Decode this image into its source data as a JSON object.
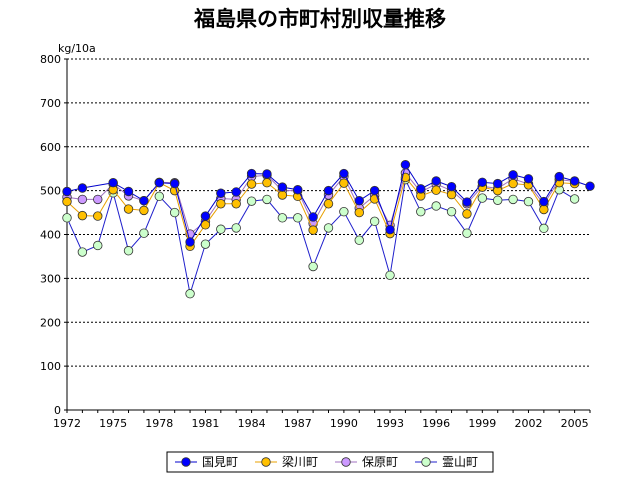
{
  "chart_data": {
    "type": "line",
    "title": "福島県の市町村別収量推移",
    "unit_label": "kg/10a",
    "xlabel": "",
    "ylabel": "kg/10a",
    "ylim": [
      0,
      800
    ],
    "yticks": [
      0,
      100,
      200,
      300,
      400,
      500,
      600,
      700,
      800
    ],
    "xlim": [
      1972,
      2006
    ],
    "xticks": [
      1972,
      1975,
      1978,
      1981,
      1984,
      1987,
      1990,
      1993,
      1996,
      1999,
      2002,
      2005
    ],
    "grid": "horizontal-dashed",
    "legend_position": "bottom",
    "x": [
      1972,
      1973,
      1974,
      1975,
      1976,
      1977,
      1978,
      1979,
      1980,
      1981,
      1982,
      1983,
      1984,
      1985,
      1986,
      1987,
      1988,
      1989,
      1990,
      1991,
      1992,
      1993,
      1994,
      1995,
      1996,
      1997,
      1998,
      1999,
      2000,
      2001,
      2002,
      2003,
      2004,
      2005,
      2006
    ],
    "series": [
      {
        "name": "国見町",
        "line_color": "#0000cc",
        "marker_fill": "#0000ff",
        "values": [
          498,
          506,
          null,
          518,
          498,
          477,
          518,
          516,
          383,
          442,
          494,
          497,
          539,
          538,
          508,
          502,
          440,
          500,
          539,
          477,
          500,
          411,
          559,
          504,
          522,
          509,
          474,
          519,
          516,
          536,
          527,
          475,
          532,
          522,
          510
        ]
      },
      {
        "name": "梁川町",
        "line_color": "#e8a000",
        "marker_fill": "#ffc000",
        "values": [
          475,
          443,
          442,
          502,
          458,
          455,
          518,
          500,
          373,
          422,
          470,
          470,
          515,
          518,
          490,
          487,
          410,
          470,
          517,
          450,
          481,
          402,
          530,
          488,
          501,
          491,
          447,
          508,
          500,
          516,
          513,
          457,
          518,
          516,
          null
        ]
      },
      {
        "name": "保原町",
        "line_color": "#a070c0",
        "marker_fill": "#cc99ff",
        "values": [
          485,
          480,
          480,
          515,
          488,
          477,
          519,
          518,
          401,
          430,
          482,
          480,
          532,
          535,
          500,
          500,
          425,
          490,
          532,
          460,
          489,
          421,
          540,
          497,
          515,
          500,
          470,
          510,
          505,
          527,
          515,
          469,
          525,
          521,
          null
        ]
      },
      {
        "name": "霊山町",
        "line_color": "#2020cc",
        "marker_fill": "#ccffcc",
        "values": [
          438,
          360,
          375,
          495,
          363,
          403,
          487,
          450,
          265,
          378,
          412,
          415,
          476,
          480,
          438,
          438,
          327,
          415,
          452,
          387,
          430,
          307,
          525,
          452,
          465,
          452,
          403,
          483,
          478,
          480,
          475,
          414,
          502,
          481,
          null
        ]
      }
    ]
  }
}
